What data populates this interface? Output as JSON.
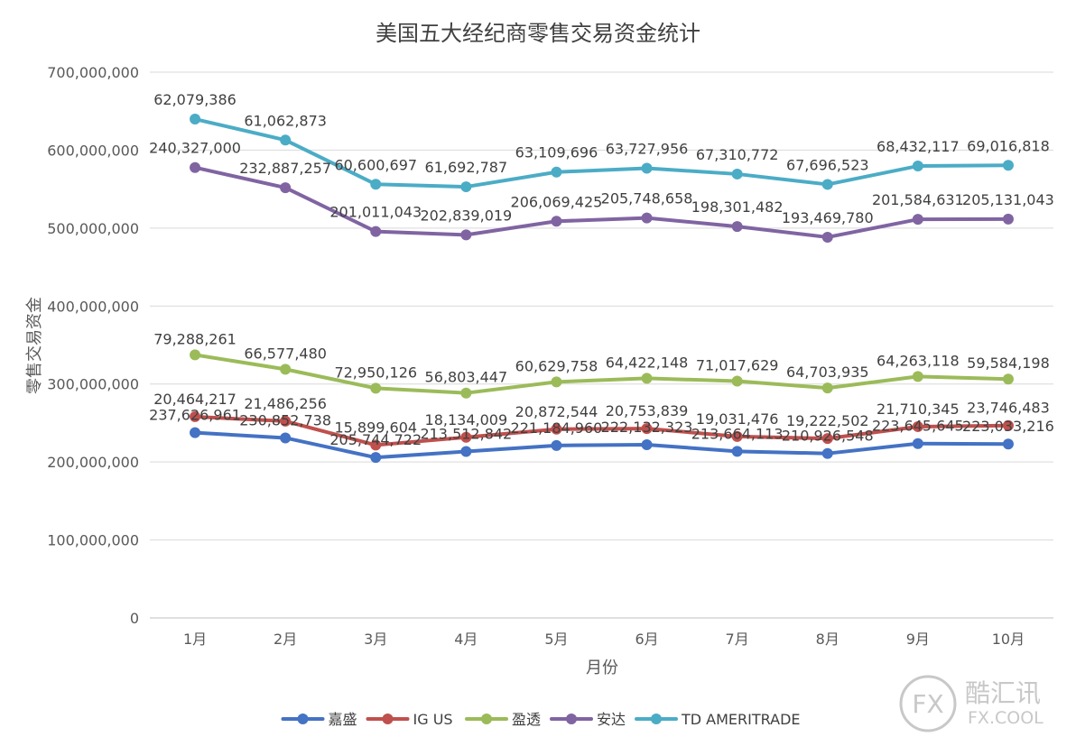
{
  "chart_data": {
    "type": "line",
    "title": "美国五大经纪商零售交易资金统计",
    "xlabel": "月份",
    "ylabel": "零售交易资金",
    "categories": [
      "1月",
      "2月",
      "3月",
      "4月",
      "5月",
      "6月",
      "7月",
      "8月",
      "9月",
      "10月"
    ],
    "ylim": [
      0,
      700000000
    ],
    "yticks": [
      "0",
      "100,000,000",
      "200,000,000",
      "300,000,000",
      "400,000,000",
      "500,000,000",
      "600,000,000",
      "700,000,000"
    ],
    "grid": true,
    "legend_position": "bottom",
    "series": [
      {
        "name": "嘉盛",
        "color": "#4472C4",
        "values": [
          237626961,
          230852738,
          205744722,
          213512842,
          221184960,
          222132323,
          213664113,
          210926548,
          223645645,
          223033216
        ],
        "labels": [
          "237,626,961",
          "230,852,738",
          "205,744,722",
          "213,512,842",
          "221,184,960",
          "222,132,323",
          "213,664,113",
          "210,926,548",
          "223,645,645",
          "223,033,216"
        ]
      },
      {
        "name": "IG US",
        "color": "#C0504D",
        "values": [
          258091178,
          252338994,
          221644326,
          231646851,
          242057504,
          242886162,
          232695589,
          230149050,
          245355990,
          246779699
        ],
        "labels": [
          "20,464,217",
          "21,486,256",
          "15,899,604",
          "18,134,009",
          "20,872,544",
          "20,753,839",
          "19,031,476",
          "19,222,502",
          "21,710,345",
          "23,746,483"
        ]
      },
      {
        "name": "盈透",
        "color": "#9BBB59",
        "values": [
          337379439,
          318916474,
          294594452,
          288450298,
          302687262,
          307308310,
          303713218,
          294852985,
          309619108,
          306363897
        ],
        "labels": [
          "79,288,261",
          "66,577,480",
          "72,950,126",
          "56,803,447",
          "60,629,758",
          "64,422,148",
          "71,017,629",
          "64,703,935",
          "64,263,118",
          "59,584,198"
        ]
      },
      {
        "name": "安达",
        "color": "#8064A2",
        "values": [
          577706439,
          551803731,
          495605495,
          491289317,
          508756687,
          513056968,
          502014700,
          488322765,
          511203739,
          511494940
        ],
        "labels": [
          "240,327,000",
          "232,887,257",
          "201,011,043",
          "202,839,019",
          "206,069,425",
          "205,748,658",
          "198,301,482",
          "193,469,780",
          "201,584,631",
          "205,131,043"
        ]
      },
      {
        "name": "TD AMERITRADE",
        "color": "#4BACC6",
        "values": [
          639785825,
          612866604,
          556206192,
          552982104,
          571866383,
          576784924,
          569325472,
          556019288,
          579635856,
          580511758
        ],
        "labels": [
          "62,079,386",
          "61,062,873",
          "60,600,697",
          "61,692,787",
          "63,109,696",
          "63,727,956",
          "67,310,772",
          "67,696,523",
          "68,432,117",
          "69,016,818"
        ]
      }
    ]
  },
  "watermark": {
    "symbol": "FX",
    "name": "酷汇讯",
    "domain": "FX.COOL"
  }
}
